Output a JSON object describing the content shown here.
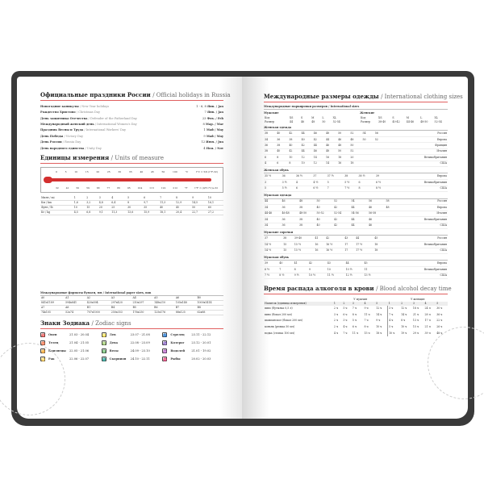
{
  "left": {
    "holidays_title": "Официальные праздники России",
    "holidays_title_en": "/ Official holidays in Russia",
    "holidays": [
      [
        "Новогодние каникулы",
        "/ New Year holidays",
        "1 - 6, 8",
        "Янв. / Jan"
      ],
      [
        "Рождество Христово",
        "/ Christmas Day",
        "7",
        "Янв. / Jan"
      ],
      [
        "День защитника Отечества",
        "/ Defender of the Fatherland Day",
        "23",
        "Фев. / Feb"
      ],
      [
        "Международный женский день",
        "/ International Women's Day",
        "8",
        "Мар. / Mar"
      ],
      [
        "Праздник Весны и Труда",
        "/ International Workers' Day",
        "1",
        "Май / May"
      ],
      [
        "День Победы",
        "/ Victory Day",
        "9",
        "Май / May"
      ],
      [
        "День России",
        "/ Russia Day",
        "12",
        "Июн. / Jun"
      ],
      [
        "День народного единства",
        "/ Unity Day",
        "4",
        "Ноя. / Nov"
      ]
    ],
    "units_title": "Единицы измерения",
    "units_title_en": "/ Units of measure",
    "celsius": [
      "0",
      "5",
      "10",
      "15",
      "20",
      "25",
      "30",
      "35",
      "40",
      "45",
      "50",
      "100",
      "°C",
      "t°C = 5/9 (t°F-32)"
    ],
    "fahrenheit": [
      "32",
      "41",
      "50",
      "59",
      "68",
      "77",
      "86",
      "95",
      "104",
      "113",
      "122",
      "212",
      "°F",
      "t°F = (9/5 t°C)+32"
    ],
    "measure_rows": [
      [
        "Миля / mi",
        "1",
        "2",
        "3",
        "4",
        "5",
        "6",
        "7",
        "8",
        "9",
        "10"
      ],
      [
        "Км / km",
        "1,6",
        "3,2",
        "4,8",
        "6,4",
        "8",
        "9,7",
        "11,3",
        "12,9",
        "14,5",
        "16,1"
      ],
      [
        "Фунт / lb",
        "10",
        "15",
        "20",
        "25",
        "30",
        "35",
        "40",
        "45",
        "50",
        "60"
      ],
      [
        "Кг / kg",
        "4,5",
        "6,8",
        "9,1",
        "11,3",
        "13,6",
        "15,9",
        "18,1",
        "20,4",
        "22,7",
        "27,2"
      ]
    ],
    "paper_title": "Международные форматы бумаги, мм / International paper sizes, mm",
    "paper": [
      [
        "A0",
        "A1",
        "A2",
        "A3",
        "A4",
        "A5",
        "A6",
        "B0"
      ],
      [
        "841x1189",
        "594x841",
        "420x594",
        "297x420",
        "210x297",
        "148x210",
        "105x148",
        "1000x1414"
      ],
      [
        "A7",
        "A8",
        "B1",
        "B4",
        "B5",
        "B6",
        "B7",
        "B8"
      ],
      [
        "74x105",
        "52x74",
        "707x1000",
        "250x353",
        "176x250",
        "125x176",
        "88x125",
        "62x88"
      ]
    ],
    "zodiac_title": "Знаки Зодиака",
    "zodiac_title_en": "/ Zodiac signs",
    "zodiac": [
      [
        "♈",
        "Овен",
        "21.03 - 20.04"
      ],
      [
        "♌",
        "Лев",
        "23.07 - 21.08"
      ],
      [
        "♐",
        "Стрелец",
        "23.11 - 22.12"
      ],
      [
        "♉",
        "Телец",
        "21.04 - 21.05"
      ],
      [
        "♍",
        "Дева",
        "22.08 - 23.09"
      ],
      [
        "♑",
        "Козерог",
        "23.12 - 20.01"
      ],
      [
        "♊",
        "Близнецы",
        "22.05 - 21.06"
      ],
      [
        "♎",
        "Весы",
        "24.09 - 23.10"
      ],
      [
        "♒",
        "Водолей",
        "21.01 - 19.02"
      ],
      [
        "♋",
        "Рак",
        "22.06 - 22.07"
      ],
      [
        "♏",
        "Скорпион",
        "24.10 - 22.11"
      ],
      [
        "♓",
        "Рыбы",
        "20.02 - 20.03"
      ]
    ]
  },
  "right": {
    "clothing_title": "Международные размеры одежды",
    "clothing_title_en": "/ International clothing sizes",
    "sub_intl": "Международные маркировки размеров / International sizes",
    "men": "Мужские",
    "women": "Женские",
    "intl_head": [
      "Код",
      "XS",
      "S",
      "M",
      "L",
      "XL"
    ],
    "intl_men": [
      "Размер",
      "44",
      "46",
      "48",
      "50",
      "52-54"
    ],
    "intl_women": [
      "Размер",
      "38-40",
      "40-42",
      "44-46",
      "48-50",
      "52-54"
    ],
    "groups": [
      {
        "title": "Женская одежда",
        "rows": [
          [
            "38",
            "40",
            "42",
            "44",
            "46",
            "48",
            "50",
            "52",
            "54",
            "56",
            "Россия"
          ],
          [
            "34",
            "36",
            "38",
            "40",
            "42",
            "44",
            "46",
            "48",
            "50",
            "52",
            "Европа"
          ],
          [
            "36",
            "38",
            "40",
            "42",
            "44",
            "46",
            "48",
            "50",
            "",
            "",
            "Франция"
          ],
          [
            "38",
            "40",
            "42",
            "44",
            "46",
            "48",
            "50",
            "52",
            "",
            "",
            "Италия"
          ],
          [
            "6",
            "8",
            "10",
            "12",
            "14",
            "16",
            "18",
            "20",
            "",
            "",
            "Великобритания"
          ],
          [
            "4",
            "6",
            "8",
            "10",
            "12",
            "14",
            "16",
            "18",
            "",
            "",
            "США"
          ]
        ]
      },
      {
        "title": "Женская обувь",
        "rows": [
          [
            "35 ½",
            "36",
            "36 ½",
            "37",
            "37 ½",
            "38",
            "38 ½",
            "39",
            "",
            "",
            "Европа"
          ],
          [
            "3",
            "3 ½",
            "4",
            "4 ½",
            "5",
            "5 ½",
            "6",
            "6 ½",
            "",
            "",
            "Великобритания"
          ],
          [
            "5",
            "5 ½",
            "6",
            "6 ½",
            "7",
            "7 ½",
            "8",
            "8 ½",
            "",
            "",
            "США"
          ]
        ]
      },
      {
        "title": "Мужская одежда",
        "rows": [
          [
            "44",
            "46",
            "48",
            "50",
            "52",
            "54",
            "56",
            "58",
            "",
            "",
            "Россия"
          ],
          [
            "34",
            "36",
            "38",
            "40",
            "42",
            "44",
            "46",
            "48",
            "",
            "",
            "Европа"
          ],
          [
            "44-46",
            "46-48",
            "48-50",
            "50-52",
            "52-54",
            "54-56",
            "56-58",
            "",
            "",
            "",
            "Италия"
          ],
          [
            "34",
            "36",
            "38",
            "40",
            "42",
            "44",
            "46",
            "",
            "",
            "",
            "Великобритания"
          ],
          [
            "34",
            "36",
            "38",
            "40",
            "42",
            "44",
            "46",
            "",
            "",
            "",
            "США"
          ]
        ]
      },
      {
        "title": "Мужские сорочки",
        "rows": [
          [
            "37",
            "38",
            "39-40",
            "41",
            "42",
            "43",
            "44",
            "45",
            "",
            "",
            "Россия"
          ],
          [
            "14 ½",
            "15",
            "15 ½",
            "16",
            "16 ½",
            "17",
            "17 ½",
            "18",
            "",
            "",
            "Великобритания"
          ],
          [
            "14 ½",
            "15",
            "15 ½",
            "16",
            "16 ½",
            "17",
            "17 ½",
            "18",
            "",
            "",
            "США"
          ]
        ]
      },
      {
        "title": "Мужская обувь",
        "rows": [
          [
            "39",
            "40",
            "41",
            "42",
            "43",
            "44",
            "45",
            "",
            "",
            "",
            "Европа"
          ],
          [
            "6 ½",
            "7",
            "8",
            "9",
            "10",
            "10 ½",
            "11",
            "",
            "",
            "",
            "Великобритания"
          ],
          [
            "7 ½",
            "8 ½",
            "9 ½",
            "10 ½",
            "11 ½",
            "12 ½",
            "13 ½",
            "",
            "",
            "",
            "США"
          ]
        ]
      }
    ],
    "alcohol_title": "Время распада алкоголя в крови",
    "alcohol_title_en": "/ Blood alcohol decay time",
    "alcohol_groups": [
      "У мужчин",
      "У женщин"
    ],
    "alcohol_head": [
      "Напиток (единица измерения)",
      "1",
      "2",
      "3",
      "4",
      "5",
      "1",
      "2",
      "3",
      "4",
      "5"
    ],
    "alcohol_rows": [
      [
        "пиво (бутылка 0,5 л)",
        "2 ч",
        "5 ч",
        "7 ч",
        "9 ч",
        "12 ч",
        "3 ч",
        "12 ч",
        "18 ч",
        "24 ч",
        "30 ч"
      ],
      [
        "вино (бокал 200 мл)",
        "3 ч",
        "6 ч",
        "8 ч",
        "11 ч",
        "14 ч",
        "7 ч",
        "14 ч",
        "21 ч",
        "28 ч",
        "36 ч"
      ],
      [
        "шампанское (бокал 200 мл)",
        "2 ч",
        "3 ч",
        "5 ч",
        "7 ч",
        "9 ч",
        "4 ч",
        "8 ч",
        "13 ч",
        "17 ч",
        "22 ч"
      ],
      [
        "коньяк (рюмка 50 мл)",
        "2 ч",
        "4 ч",
        "6 ч",
        "8 ч",
        "10 ч",
        "5 ч",
        "10 ч",
        "15 ч",
        "21 ч",
        "26 ч"
      ],
      [
        "водка (стопка 100 мл)",
        "4 ч",
        "7 ч",
        "11 ч",
        "15 ч",
        "18 ч",
        "10 ч",
        "19 ч",
        "29 ч",
        "39 ч",
        "48 ч"
      ]
    ]
  },
  "colors": {
    "accent": "#d32f2f",
    "cover": "#3a3a3a"
  }
}
